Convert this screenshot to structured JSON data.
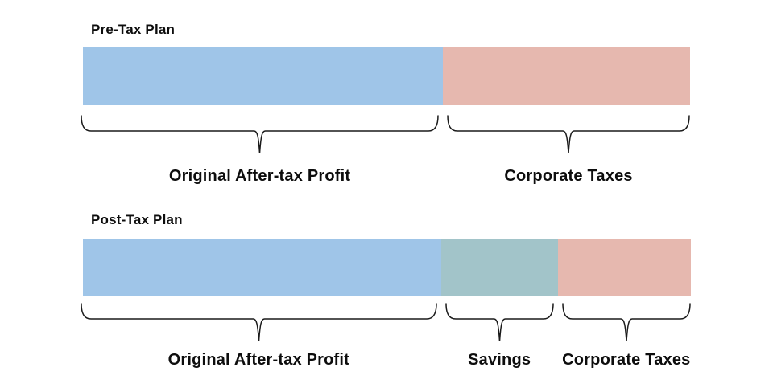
{
  "page": {
    "background": "#ffffff",
    "text_color": "#0d0d0d",
    "brace_color": "#1a1a1a"
  },
  "chart_data": [
    {
      "type": "bar",
      "variant": "horizontal-stacked",
      "title": "Pre-Tax Plan",
      "annotation_style": "curly-brace-below",
      "axis": "none",
      "segments": [
        {
          "label": "Original After-tax Profit",
          "color": "#9FC5E8",
          "fraction": 0.593
        },
        {
          "label": "Corporate Taxes",
          "color": "#E6B8AF",
          "fraction": 0.407
        }
      ]
    },
    {
      "type": "bar",
      "variant": "horizontal-stacked",
      "title": "Post-Tax Plan",
      "annotation_style": "curly-brace-below",
      "axis": "none",
      "segments": [
        {
          "label": "Original After-tax Profit",
          "color": "#9FC5E8",
          "fraction": 0.589
        },
        {
          "label": "Savings",
          "color": "#A2C4C9",
          "fraction": 0.192
        },
        {
          "label": "Corporate Taxes",
          "color": "#E6B8AF",
          "fraction": 0.219
        }
      ]
    }
  ]
}
